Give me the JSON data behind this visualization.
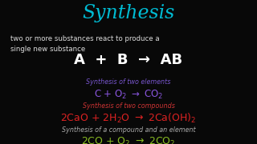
{
  "background_color": "#080808",
  "title": "Synthesis",
  "title_color": "#00bcd4",
  "title_fontsize": 17,
  "subtitle1": "two or more substances react to produce a",
  "subtitle2": "single new substance",
  "subtitle_color": "#dddddd",
  "subtitle_fontsize": 6.2,
  "general_eq": "A  +  B  →  AB",
  "general_eq_color": "#ffffff",
  "general_eq_fontsize": 13,
  "label1": "Synthesis of two elements",
  "label1_color": "#7755cc",
  "label1_fontsize": 5.8,
  "eq1": "C + O$_2$ $\\rightarrow$ CO$_2$",
  "eq1_color": "#8855dd",
  "eq1_fontsize": 8.5,
  "label2": "Synthesis of two compounds",
  "label2_color": "#cc3333",
  "label2_fontsize": 5.8,
  "eq2": "2CaO + 2H$_2$O $\\rightarrow$ 2Ca(OH)$_2$",
  "eq2_color": "#dd2222",
  "eq2_fontsize": 9.0,
  "label3": "Synthesis of a compound and an element",
  "label3_color": "#aaaaaa",
  "label3_fontsize": 5.8,
  "eq3": "2CO + O$_2$ $\\rightarrow$ 2CO$_2$",
  "eq3_color": "#88bb22",
  "eq3_fontsize": 9.0
}
